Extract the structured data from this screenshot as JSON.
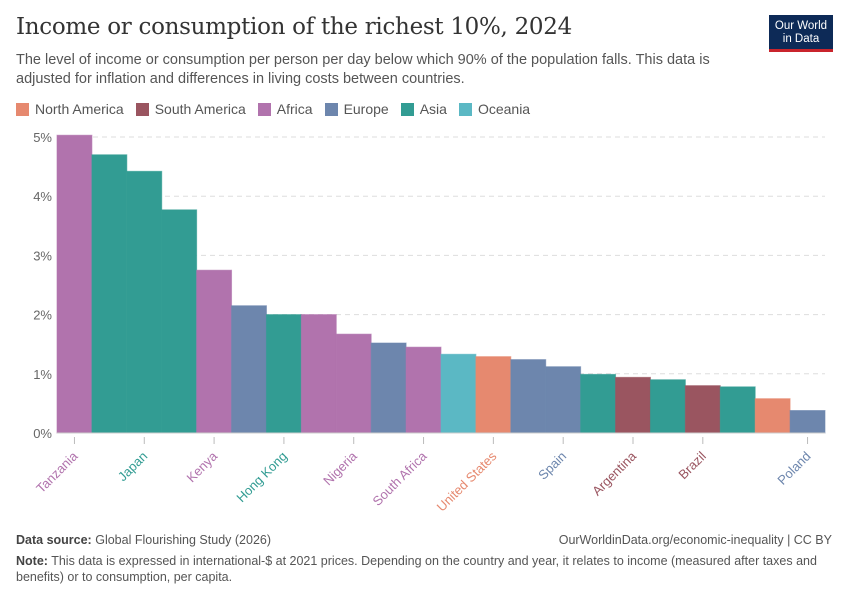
{
  "header": {
    "title": "Income or consumption of the richest 10%, 2024",
    "subtitle": "The level of income or consumption per person per day below which 90% of the population falls. This data is adjusted for inflation and differences in living costs between countries.",
    "logo": "Our World in Data"
  },
  "legend": [
    {
      "name": "North America",
      "color": "#e6896f"
    },
    {
      "name": "South America",
      "color": "#9a5560"
    },
    {
      "name": "Africa",
      "color": "#b173ad"
    },
    {
      "name": "Europe",
      "color": "#6d86ad"
    },
    {
      "name": "Asia",
      "color": "#329c93"
    },
    {
      "name": "Oceania",
      "color": "#5bb8c4"
    }
  ],
  "chart_data": {
    "type": "bar",
    "ylim": [
      0,
      5
    ],
    "yticks": [
      "0%",
      "1%",
      "2%",
      "3%",
      "4%",
      "5%"
    ],
    "grid": "horizontal dashed",
    "legend": "top",
    "bars": [
      {
        "label": "Tanzania",
        "region": "Africa",
        "value": 5.03
      },
      {
        "label": "",
        "region": "Asia",
        "value": 4.7
      },
      {
        "label": "Japan",
        "region": "Asia",
        "value": 4.42
      },
      {
        "label": "",
        "region": "Asia",
        "value": 3.77
      },
      {
        "label": "Kenya",
        "region": "Africa",
        "value": 2.75
      },
      {
        "label": "",
        "region": "Europe",
        "value": 2.15
      },
      {
        "label": "Hong Kong",
        "region": "Asia",
        "value": 2.0
      },
      {
        "label": "",
        "region": "Africa",
        "value": 2.0
      },
      {
        "label": "Nigeria",
        "region": "Africa",
        "value": 1.67
      },
      {
        "label": "",
        "region": "Europe",
        "value": 1.52
      },
      {
        "label": "South Africa",
        "region": "Africa",
        "value": 1.45
      },
      {
        "label": "",
        "region": "Oceania",
        "value": 1.33
      },
      {
        "label": "United States",
        "region": "North America",
        "value": 1.29
      },
      {
        "label": "",
        "region": "Europe",
        "value": 1.24
      },
      {
        "label": "Spain",
        "region": "Europe",
        "value": 1.12
      },
      {
        "label": "",
        "region": "Asia",
        "value": 0.99
      },
      {
        "label": "Argentina",
        "region": "South America",
        "value": 0.94
      },
      {
        "label": "",
        "region": "Asia",
        "value": 0.9
      },
      {
        "label": "Brazil",
        "region": "South America",
        "value": 0.8
      },
      {
        "label": "",
        "region": "Asia",
        "value": 0.78
      },
      {
        "label": "",
        "region": "North America",
        "value": 0.58
      },
      {
        "label": "Poland",
        "region": "Europe",
        "value": 0.38
      }
    ]
  },
  "footer": {
    "source_label": "Data source:",
    "source": "Global Flourishing Study (2026)",
    "url": "OurWorldinData.org/economic-inequality | CC BY",
    "note_label": "Note:",
    "note": "This data is expressed in international-$ at 2021 prices. Depending on the country and year, it relates to income (measured after taxes and benefits) or to consumption, per capita."
  }
}
